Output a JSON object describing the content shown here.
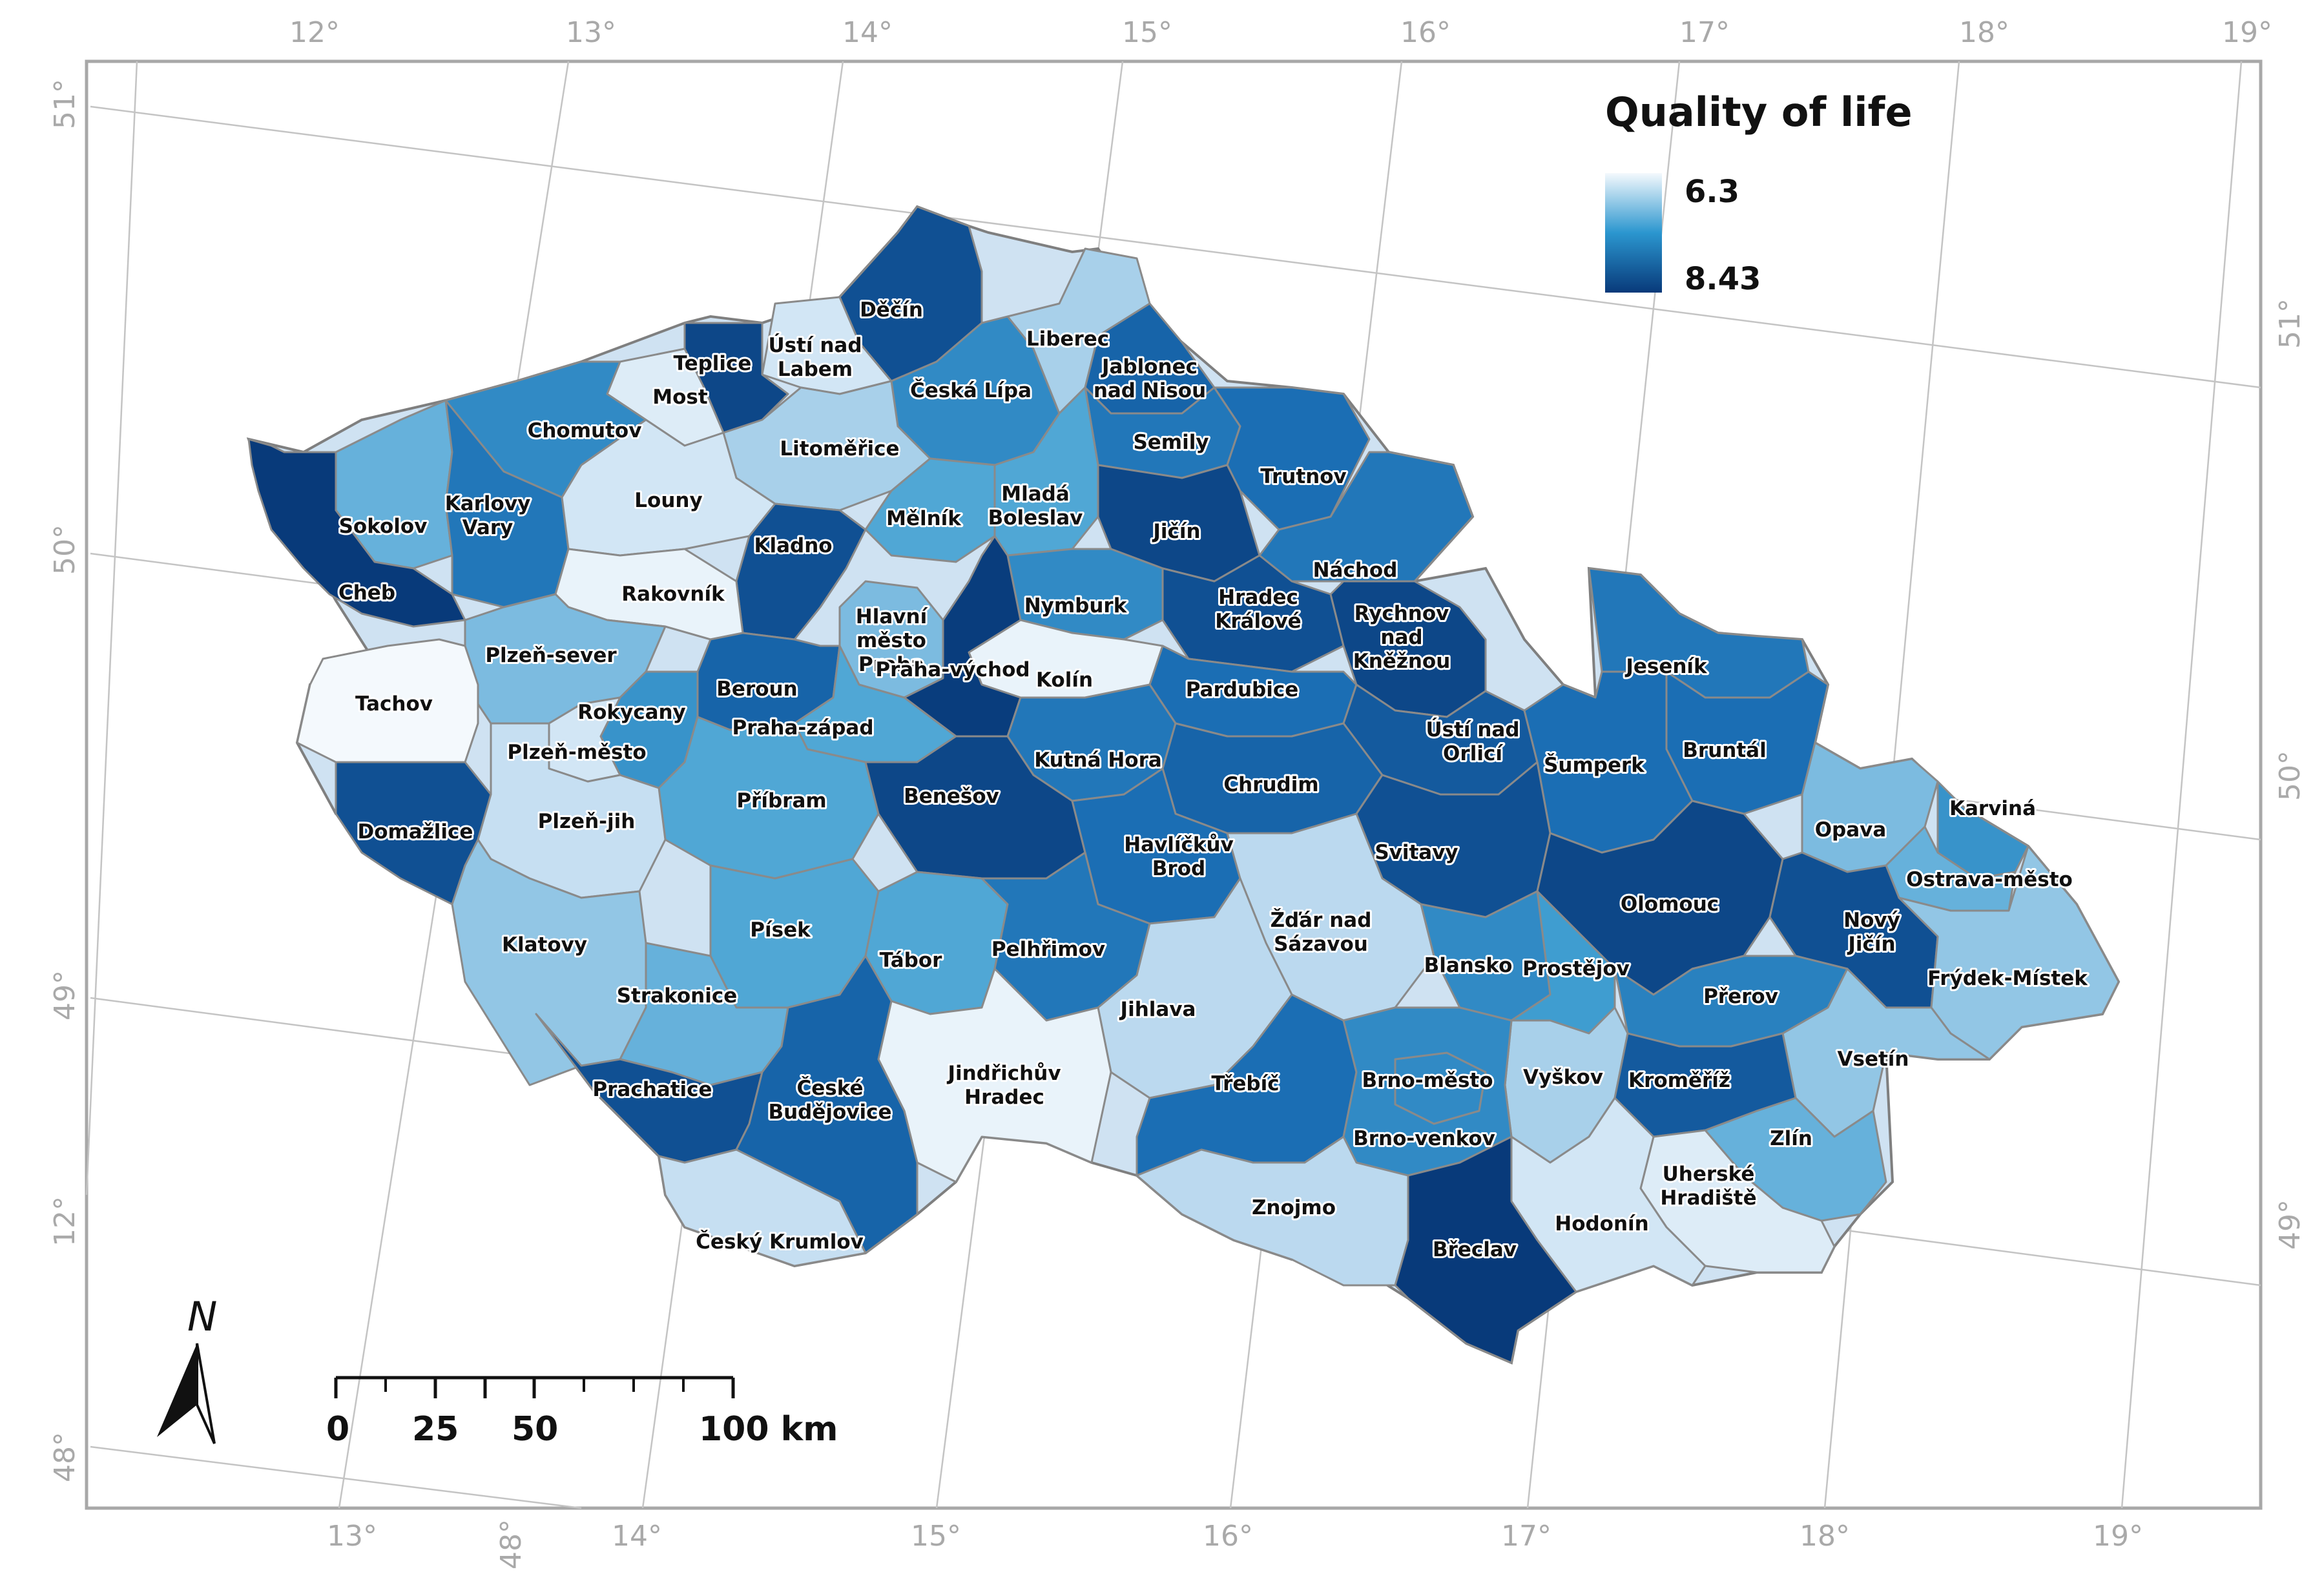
{
  "legend": {
    "title": "Quality of life",
    "min_label": "6.3",
    "max_label": "8.43",
    "min_value": 6.3,
    "max_value": 8.43,
    "color_low": "#f4f9fd",
    "color_high": "#083a7a"
  },
  "ticks": {
    "top": [
      "12°",
      "13°",
      "14°",
      "15°",
      "16°",
      "17°",
      "18°",
      "19°"
    ],
    "bottom": [
      "13°",
      "14°",
      "15°",
      "16°",
      "17°",
      "18°",
      "19°"
    ],
    "bottom_extra": "48°",
    "left": [
      "51°",
      "50°",
      "49°",
      "12°",
      "48°"
    ],
    "right": [
      "51°",
      "50°",
      "49°"
    ]
  },
  "north_arrow": {
    "label": "N"
  },
  "scale_bar": {
    "labels": [
      "0",
      "25",
      "50",
      "100 km"
    ]
  },
  "districts": [
    {
      "name": "Děčín",
      "value": 8.2
    },
    {
      "name": "Ústí nad Labem",
      "value": 6.6
    },
    {
      "name": "Teplice",
      "value": 8.3
    },
    {
      "name": "Most",
      "value": 6.5
    },
    {
      "name": "Česká Lípa",
      "value": 7.6
    },
    {
      "name": "Liberec",
      "value": 6.9
    },
    {
      "name": "Jablonec nad Nisou",
      "value": 8.0
    },
    {
      "name": "Semily",
      "value": 7.8
    },
    {
      "name": "Chomutov",
      "value": 7.6
    },
    {
      "name": "Litoměřice",
      "value": 6.9
    },
    {
      "name": "Trutnov",
      "value": 7.9
    },
    {
      "name": "Sokolov",
      "value": 7.2
    },
    {
      "name": "Karlovy Vary",
      "value": 7.8
    },
    {
      "name": "Louny",
      "value": 6.6
    },
    {
      "name": "Mělník",
      "value": 7.3
    },
    {
      "name": "Mladá Boleslav",
      "value": 7.3
    },
    {
      "name": "Jičín",
      "value": 8.3
    },
    {
      "name": "Kladno",
      "value": 8.2
    },
    {
      "name": "Náchod",
      "value": 7.8
    },
    {
      "name": "Cheb",
      "value": 8.43
    },
    {
      "name": "Rakovník",
      "value": 6.4
    },
    {
      "name": "Hlavní město Praha",
      "value": 7.1
    },
    {
      "name": "Nymburk",
      "value": 7.6
    },
    {
      "name": "Hradec Králové",
      "value": 8.2
    },
    {
      "name": "Rychnov nad Kněžnou",
      "value": 8.3
    },
    {
      "name": "Plzeň-sever",
      "value": 7.1
    },
    {
      "name": "Jeseník",
      "value": 7.8
    },
    {
      "name": "Kolín",
      "value": 6.4
    },
    {
      "name": "Tachov",
      "value": 6.3
    },
    {
      "name": "Beroun",
      "value": 8.0
    },
    {
      "name": "Rokycany",
      "value": 7.5
    },
    {
      "name": "Pardubice",
      "value": 7.9
    },
    {
      "name": "Praha-východ",
      "value": 8.4
    },
    {
      "name": "Praha-západ",
      "value": 7.3
    },
    {
      "name": "Plzeň-město",
      "value": 6.6
    },
    {
      "name": "Ústí nad Orlicí",
      "value": 8.1
    },
    {
      "name": "Bruntál",
      "value": 7.9
    },
    {
      "name": "Kutná Hora",
      "value": 7.8
    },
    {
      "name": "Šumperk",
      "value": 7.9
    },
    {
      "name": "Příbram",
      "value": 7.3
    },
    {
      "name": "Chrudim",
      "value": 8.0
    },
    {
      "name": "Benešov",
      "value": 8.3
    },
    {
      "name": "Domažlice",
      "value": 8.2
    },
    {
      "name": "Plzeň-jih",
      "value": 6.7
    },
    {
      "name": "Opava",
      "value": 7.1
    },
    {
      "name": "Havlíčkův Brod",
      "value": 7.9
    },
    {
      "name": "Svitavy",
      "value": 8.2
    },
    {
      "name": "Karviná",
      "value": 7.5
    },
    {
      "name": "Ostrava-město",
      "value": 7.2
    },
    {
      "name": "Olomouc",
      "value": 8.3
    },
    {
      "name": "Nový Jičín",
      "value": 8.2
    },
    {
      "name": "Písek",
      "value": 7.3
    },
    {
      "name": "Žďár nad Sázavou",
      "value": 6.8
    },
    {
      "name": "Klatovy",
      "value": 7.0
    },
    {
      "name": "Tábor",
      "value": 7.3
    },
    {
      "name": "Pelhřimov",
      "value": 7.8
    },
    {
      "name": "Blansko",
      "value": 7.6
    },
    {
      "name": "Prostějov",
      "value": 7.4
    },
    {
      "name": "Frýdek-Místek",
      "value": 7.0
    },
    {
      "name": "Strakonice",
      "value": 7.2
    },
    {
      "name": "Jihlava",
      "value": 6.8
    },
    {
      "name": "Přerov",
      "value": 7.7
    },
    {
      "name": "Vsetín",
      "value": 7.0
    },
    {
      "name": "Prachatice",
      "value": 8.2
    },
    {
      "name": "Jindřichův Hradec",
      "value": 6.4
    },
    {
      "name": "Třebíč",
      "value": 7.9
    },
    {
      "name": "Brno-město",
      "value": 7.6
    },
    {
      "name": "Vyškov",
      "value": 6.9
    },
    {
      "name": "Kroměříž",
      "value": 8.1
    },
    {
      "name": "České Budějovice",
      "value": 8.0
    },
    {
      "name": "Brno-venkov",
      "value": 7.6
    },
    {
      "name": "Zlín",
      "value": 7.2
    },
    {
      "name": "Uherské Hradiště",
      "value": 6.5
    },
    {
      "name": "Znojmo",
      "value": 6.8
    },
    {
      "name": "Hodonín",
      "value": 6.6
    },
    {
      "name": "Břeclav",
      "value": 8.43
    },
    {
      "name": "Český Krumlov",
      "value": 6.7
    }
  ]
}
